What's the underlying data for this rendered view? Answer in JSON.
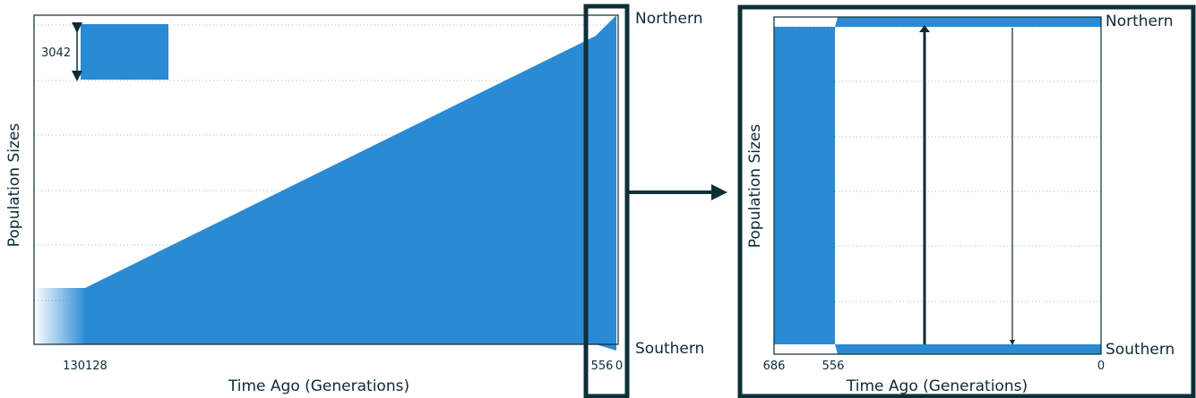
{
  "colors": {
    "fill": "#2a8bd4",
    "frame": "#0d2f38",
    "axis": "#0d2a36",
    "grid": "#aab4b8"
  },
  "chart_data": [
    {
      "type": "area",
      "panel": "overview",
      "xlabel": "Time Ago (Generations)",
      "ylabel": "Population Sizes",
      "x_ticks": [
        "130128",
        "556",
        "0"
      ],
      "x_points": [
        130128,
        556,
        0
      ],
      "grid": "horizontal dotted",
      "scale_bar": {
        "label": "3042",
        "value": 3042
      },
      "series": [
        {
          "name": "Northern",
          "label_position": "top-right"
        },
        {
          "name": "Southern",
          "label_position": "bottom-right"
        }
      ],
      "ancestral_width_fraction": 0.17,
      "width_at_556_fraction": 0.94
    },
    {
      "type": "area",
      "panel": "zoom",
      "xlabel": "Time Ago (Generations)",
      "ylabel": "Population Sizes",
      "x_ticks": [
        "686",
        "556",
        "0"
      ],
      "x_points": [
        686,
        556,
        0
      ],
      "grid": "horizontal dotted",
      "series": [
        {
          "name": "Northern",
          "label_position": "top-right"
        },
        {
          "name": "Southern",
          "label_position": "bottom-right"
        }
      ],
      "migration_arrows": [
        {
          "time": 300,
          "direction": "south-to-north",
          "weight": "thick"
        },
        {
          "time": 120,
          "direction": "north-to-south",
          "weight": "thin"
        }
      ]
    }
  ]
}
